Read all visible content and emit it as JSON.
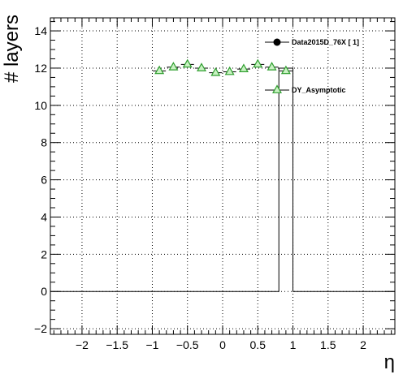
{
  "chart_data": {
    "type": "scatter",
    "xlabel": "η",
    "ylabel": "# layers",
    "xlim": [
      -2.45,
      2.45
    ],
    "ylim": [
      -2.3,
      14.7
    ],
    "x_ticks": [
      -2,
      -1.5,
      -1,
      -0.5,
      0,
      0.5,
      1,
      1.5,
      2
    ],
    "x_tick_labels": [
      "−2",
      "−1.5",
      "−1",
      "−0.5",
      "0",
      "0.5",
      "1",
      "1.5",
      "2"
    ],
    "y_ticks": [
      -2,
      0,
      2,
      4,
      6,
      8,
      10,
      12,
      14
    ],
    "y_tick_labels": [
      "−2",
      "0",
      "2",
      "4",
      "6",
      "8",
      "10",
      "12",
      "14"
    ],
    "grid": true,
    "legend_position": "top-right",
    "series": [
      {
        "name": "Data2015D_76X [        1]",
        "style": "step-line",
        "color": "#000000",
        "x": [
          -2.45,
          0.8,
          0.8,
          1.0,
          1.0,
          2.45
        ],
        "y": [
          0,
          0,
          12,
          12,
          0,
          0
        ]
      },
      {
        "name": "DY_Asymptotic",
        "style": "marker",
        "marker": "open-triangle",
        "color": "#2e9e2e",
        "fill": "#c9f2c3",
        "x": [
          -0.9,
          -0.7,
          -0.5,
          -0.3,
          -0.1,
          0.1,
          0.3,
          0.5,
          0.7,
          0.9
        ],
        "y": [
          11.85,
          12.05,
          12.2,
          12.0,
          11.75,
          11.8,
          11.95,
          12.2,
          12.05,
          11.85
        ]
      }
    ]
  }
}
